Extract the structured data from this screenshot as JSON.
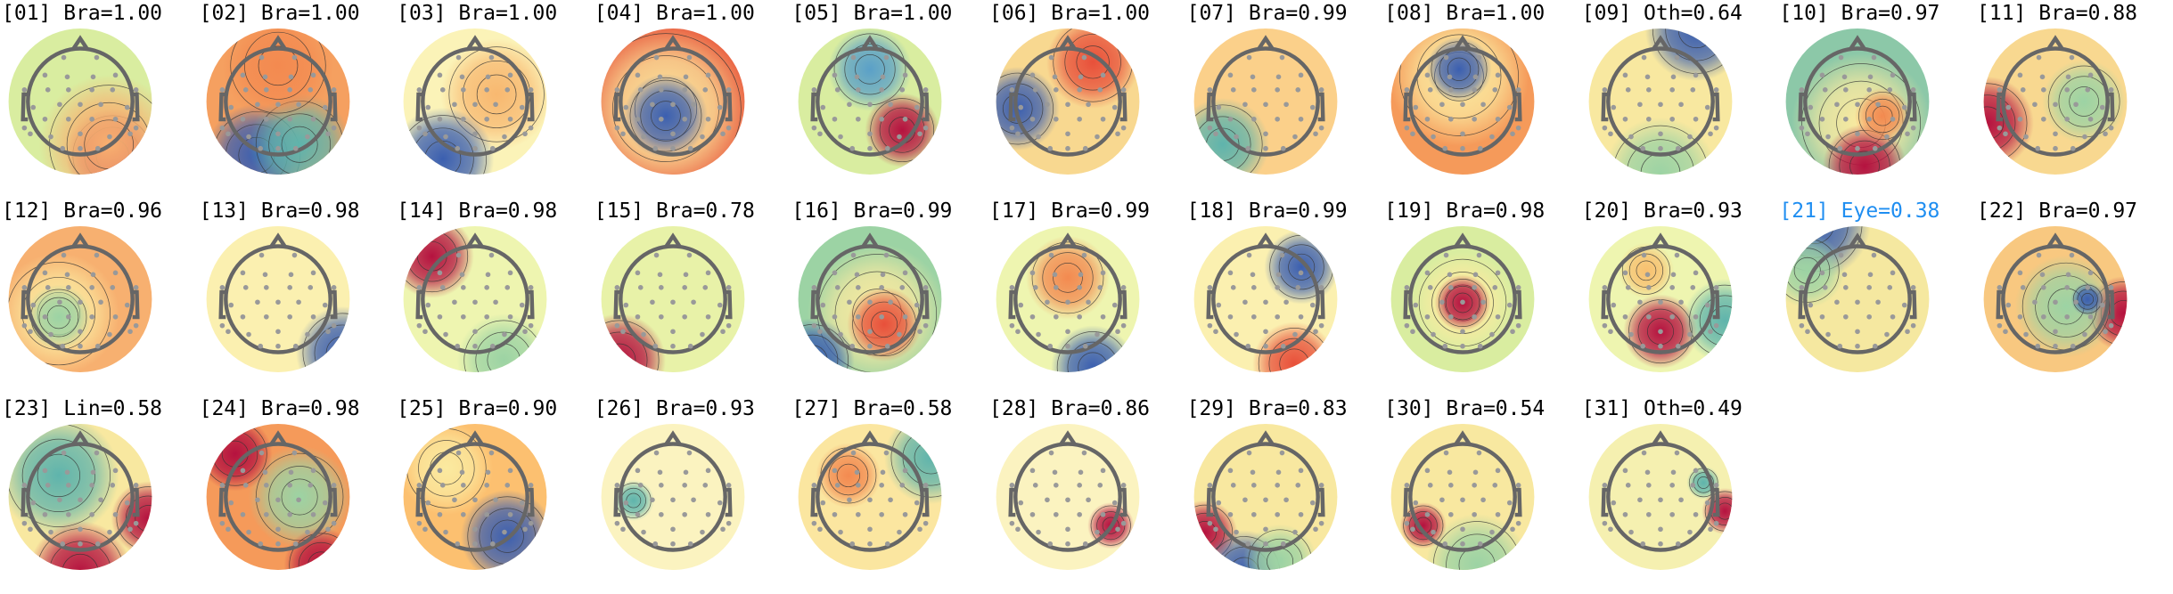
{
  "chart_data": {
    "type": "heatmap",
    "colormap": "RdYlBu_r-like spectral",
    "highlight_color": "#1f8ef1",
    "components": [
      {
        "index": "01",
        "label": "Bra",
        "prob": "1.00"
      },
      {
        "index": "02",
        "label": "Bra",
        "prob": "1.00"
      },
      {
        "index": "03",
        "label": "Bra",
        "prob": "1.00"
      },
      {
        "index": "04",
        "label": "Bra",
        "prob": "1.00"
      },
      {
        "index": "05",
        "label": "Bra",
        "prob": "1.00"
      },
      {
        "index": "06",
        "label": "Bra",
        "prob": "1.00"
      },
      {
        "index": "07",
        "label": "Bra",
        "prob": "0.99"
      },
      {
        "index": "08",
        "label": "Bra",
        "prob": "1.00"
      },
      {
        "index": "09",
        "label": "Oth",
        "prob": "0.64"
      },
      {
        "index": "10",
        "label": "Bra",
        "prob": "0.97"
      },
      {
        "index": "11",
        "label": "Bra",
        "prob": "0.88"
      },
      {
        "index": "12",
        "label": "Bra",
        "prob": "0.96"
      },
      {
        "index": "13",
        "label": "Bra",
        "prob": "0.98"
      },
      {
        "index": "14",
        "label": "Bra",
        "prob": "0.98"
      },
      {
        "index": "15",
        "label": "Bra",
        "prob": "0.78"
      },
      {
        "index": "16",
        "label": "Bra",
        "prob": "0.99"
      },
      {
        "index": "17",
        "label": "Bra",
        "prob": "0.99"
      },
      {
        "index": "18",
        "label": "Bra",
        "prob": "0.99"
      },
      {
        "index": "19",
        "label": "Bra",
        "prob": "0.98"
      },
      {
        "index": "20",
        "label": "Bra",
        "prob": "0.93"
      },
      {
        "index": "21",
        "label": "Eye",
        "prob": "0.38",
        "highlighted": true
      },
      {
        "index": "22",
        "label": "Bra",
        "prob": "0.97"
      },
      {
        "index": "23",
        "label": "Lin",
        "prob": "0.58"
      },
      {
        "index": "24",
        "label": "Bra",
        "prob": "0.98"
      },
      {
        "index": "25",
        "label": "Bra",
        "prob": "0.90"
      },
      {
        "index": "26",
        "label": "Bra",
        "prob": "0.93"
      },
      {
        "index": "27",
        "label": "Bra",
        "prob": "0.58"
      },
      {
        "index": "28",
        "label": "Bra",
        "prob": "0.86"
      },
      {
        "index": "29",
        "label": "Bra",
        "prob": "0.83"
      },
      {
        "index": "30",
        "label": "Bra",
        "prob": "0.54"
      },
      {
        "index": "31",
        "label": "Oth",
        "prob": "0.49"
      }
    ]
  }
}
